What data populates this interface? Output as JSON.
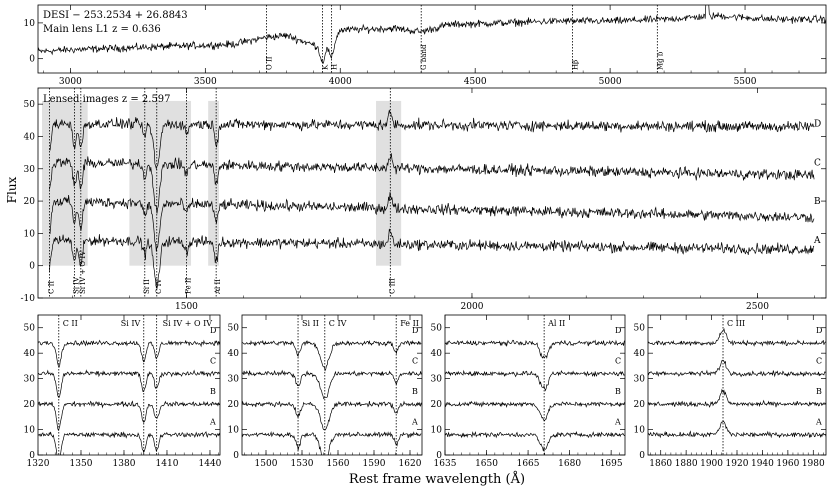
{
  "figure": {
    "xlabel": "Rest frame wavelength (Å)",
    "ylabel": "Flux"
  },
  "colors": {
    "line": "#000000",
    "shade": "#e0e0e0",
    "frame": "#000000"
  },
  "chart_data": [
    {
      "id": "top",
      "type": "line",
      "title": "DESI − 253.2534 + 26.8843",
      "subtitle": "Main lens L1   z = 0.636",
      "xlim": [
        2880,
        5800
      ],
      "ylim": [
        -4,
        15
      ],
      "xticks": [
        3000,
        3500,
        4000,
        4500,
        5000,
        5500
      ],
      "yticks": [
        0,
        10
      ],
      "series": [
        {
          "x": [
            2880,
            3000,
            3200,
            3400,
            3600,
            3727,
            3800,
            3934,
            3968,
            4000,
            4200,
            4300,
            4400,
            4600,
            4800,
            5000,
            5200,
            5400,
            5600,
            5800
          ],
          "y": [
            2,
            2.5,
            3,
            3.5,
            4,
            6,
            6.5,
            3,
            4,
            8,
            8.5,
            7.5,
            9.5,
            10,
            10.5,
            10.5,
            11,
            12,
            11,
            11
          ]
        }
      ],
      "lines": [
        {
          "x": 3727,
          "label": "O II"
        },
        {
          "x": 3934,
          "label": "K"
        },
        {
          "x": 3968,
          "label": "H"
        },
        {
          "x": 4300,
          "label": "G band"
        },
        {
          "x": 4861,
          "label": "Hβ"
        },
        {
          "x": 5175,
          "label": "Mg b"
        }
      ]
    },
    {
      "id": "middle",
      "type": "line",
      "title": "Lensed images   z = 2.597",
      "xlim": [
        1240,
        2620
      ],
      "ylim": [
        -10,
        55
      ],
      "xticks": [
        1500,
        2000,
        2500
      ],
      "yticks": [
        -10,
        0,
        10,
        20,
        30,
        40,
        50
      ],
      "shaded_regions": [
        [
          1247,
          1327
        ],
        [
          1400,
          1508
        ],
        [
          1538,
          1557
        ],
        [
          1832,
          1876
        ]
      ],
      "series": [
        {
          "name": "A",
          "offset": 8,
          "x": [
            1260,
            2600
          ],
          "y": [
            8,
            5
          ]
        },
        {
          "name": "B",
          "offset": 20,
          "x": [
            1260,
            2600
          ],
          "y": [
            20,
            15
          ]
        },
        {
          "name": "C",
          "offset": 32,
          "x": [
            1260,
            2600
          ],
          "y": [
            32,
            28
          ]
        },
        {
          "name": "D",
          "offset": 44,
          "x": [
            1260,
            2600
          ],
          "y": [
            44,
            43
          ]
        }
      ],
      "lines": [
        {
          "x": 1260,
          "label": "C II"
        },
        {
          "x": 1304,
          "label": "Si IV"
        },
        {
          "x": 1315,
          "label": "Si IV + O IV"
        },
        {
          "x": 1427,
          "label": "Si II"
        },
        {
          "x": 1448,
          "label": "C IV"
        },
        {
          "x": 1500,
          "label": "Fe II"
        },
        {
          "x": 1552,
          "label": "Al II"
        },
        {
          "x": 1857,
          "label": "C III"
        }
      ]
    },
    {
      "id": "zoom1",
      "type": "line",
      "xlim": [
        1320,
        1447
      ],
      "ylim": [
        0,
        55
      ],
      "xticks": [
        1320,
        1350,
        1380,
        1410,
        1440
      ],
      "yticks": [
        0,
        10,
        20,
        30,
        40,
        50
      ],
      "series_labels": [
        "D",
        "C",
        "B",
        "A"
      ],
      "lines": [
        {
          "x": 1334.5,
          "label": "C II"
        },
        {
          "x": 1393.8,
          "label": "Si IV"
        },
        {
          "x": 1402.8,
          "label": "Si IV + O IV"
        }
      ]
    },
    {
      "id": "zoom2",
      "type": "line",
      "xlim": [
        1480,
        1630
      ],
      "ylim": [
        0,
        55
      ],
      "xticks": [
        1500,
        1530,
        1560,
        1590,
        1620
      ],
      "yticks": [
        0,
        10,
        20,
        30,
        40,
        50
      ],
      "series_labels": [
        "D",
        "C",
        "B",
        "A"
      ],
      "lines": [
        {
          "x": 1526.7,
          "label": "Si II"
        },
        {
          "x": 1549.0,
          "label": "C IV"
        },
        {
          "x": 1608.5,
          "label": "Fe II"
        }
      ]
    },
    {
      "id": "zoom3",
      "type": "line",
      "xlim": [
        1635,
        1700
      ],
      "ylim": [
        0,
        55
      ],
      "xticks": [
        1635,
        1650,
        1665,
        1680,
        1695
      ],
      "yticks": [
        0,
        10,
        20,
        30,
        40,
        50
      ],
      "series_labels": [
        "D",
        "C",
        "B",
        "A"
      ],
      "lines": [
        {
          "x": 1670.8,
          "label": "Al II"
        }
      ]
    },
    {
      "id": "zoom4",
      "type": "line",
      "xlim": [
        1850,
        1990
      ],
      "ylim": [
        0,
        55
      ],
      "xticks": [
        1860,
        1880,
        1900,
        1920,
        1940,
        1960,
        1980
      ],
      "yticks": [
        0,
        10,
        20,
        30,
        40,
        50
      ],
      "series_labels": [
        "D",
        "C",
        "B",
        "A"
      ],
      "lines": [
        {
          "x": 1909,
          "label": "C III"
        }
      ]
    }
  ]
}
